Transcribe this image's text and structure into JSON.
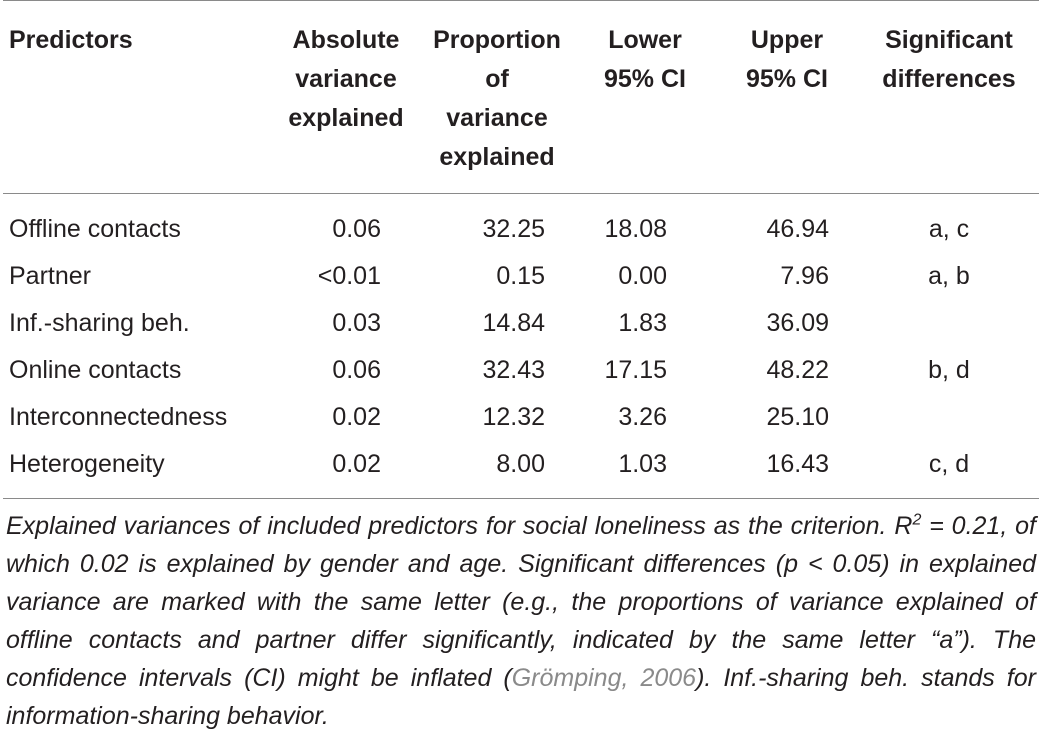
{
  "table": {
    "headers": [
      [
        "Predictors"
      ],
      [
        "Absolute",
        "variance",
        "explained"
      ],
      [
        "Proportion",
        "of",
        "variance",
        "explained"
      ],
      [
        "Lower",
        "95% CI"
      ],
      [
        "Upper",
        "95% CI"
      ],
      [
        "Significant",
        "differences"
      ]
    ],
    "rows": [
      {
        "predictor": "Offline contacts",
        "absolute": "0.06",
        "proportion": "32.25",
        "lower": "18.08",
        "upper": "46.94",
        "sig": "a, c"
      },
      {
        "predictor": "Partner",
        "absolute": "<0.01",
        "proportion": "0.15",
        "lower": "0.00",
        "upper": "7.96",
        "sig": "a, b"
      },
      {
        "predictor": "Inf.-sharing beh.",
        "absolute": "0.03",
        "proportion": "14.84",
        "lower": "1.83",
        "upper": "36.09",
        "sig": ""
      },
      {
        "predictor": "Online contacts",
        "absolute": "0.06",
        "proportion": "32.43",
        "lower": "17.15",
        "upper": "48.22",
        "sig": "b, d"
      },
      {
        "predictor": "Interconnectedness",
        "absolute": "0.02",
        "proportion": "12.32",
        "lower": "3.26",
        "upper": "25.10",
        "sig": ""
      },
      {
        "predictor": "Heterogeneity",
        "absolute": "0.02",
        "proportion": "8.00",
        "lower": "1.03",
        "upper": "16.43",
        "sig": "c, d"
      }
    ]
  },
  "caption": {
    "part1": "Explained variances of included predictors for social loneliness as the criterion. ",
    "r_symbol": "R",
    "r_sup": "2",
    "part2": " = 0.21, of which 0.02 is explained by gender and age. Significant differ­ences (p < 0.05) in explained variance are marked with the same letter (e.g., the proportions of variance explained of offline contacts and partner differ significantly, indicated by the same letter “a”). The confidence intervals (CI) might be inflated (",
    "citation": "Grömping, 2006",
    "part3": "). Inf.-sharing beh. stands for information-sharing behavior."
  }
}
